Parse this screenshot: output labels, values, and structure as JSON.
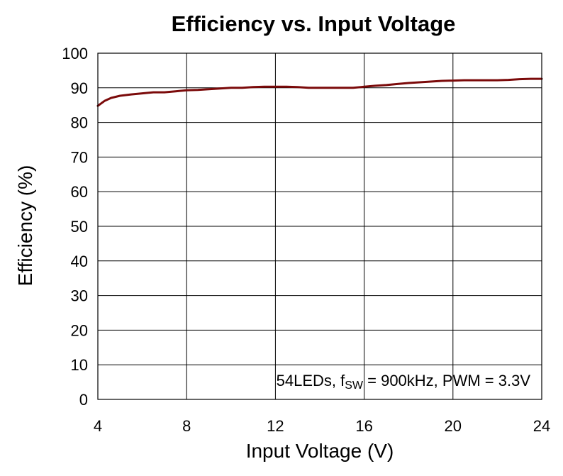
{
  "chart_data": {
    "type": "line",
    "title": "Efficiency vs. Input Voltage",
    "xlabel": "Input Voltage (V)",
    "ylabel": "Efficiency (%)",
    "xlim": [
      4,
      24
    ],
    "ylim": [
      0,
      100
    ],
    "xticks": [
      4,
      8,
      12,
      16,
      20,
      24
    ],
    "yticks": [
      0,
      10,
      20,
      30,
      40,
      50,
      60,
      70,
      80,
      90,
      100
    ],
    "grid": true,
    "annotation": {
      "prefix": "54LEDs, f",
      "subscript": "SW",
      "suffix": " = 900kHz, PWM = 3.3V"
    },
    "series": [
      {
        "color": "#7b0a0a",
        "x": [
          4.0,
          4.3,
          4.6,
          5.0,
          5.5,
          6.0,
          6.5,
          7.0,
          7.5,
          8.0,
          8.5,
          9.0,
          9.5,
          10.0,
          10.5,
          11.0,
          11.5,
          12.0,
          12.5,
          13.0,
          13.5,
          14.0,
          14.5,
          15.0,
          15.5,
          16.0,
          16.5,
          17.0,
          17.5,
          18.0,
          18.5,
          19.0,
          19.5,
          20.0,
          20.5,
          21.0,
          21.5,
          22.0,
          22.5,
          23.0,
          23.5,
          24.0
        ],
        "y": [
          84.8,
          86.2,
          87.1,
          87.7,
          88.1,
          88.4,
          88.7,
          88.7,
          89.0,
          89.3,
          89.4,
          89.6,
          89.8,
          90.0,
          90.0,
          90.2,
          90.3,
          90.3,
          90.3,
          90.2,
          90.0,
          90.0,
          90.0,
          90.0,
          90.0,
          90.3,
          90.6,
          90.8,
          91.1,
          91.4,
          91.6,
          91.8,
          92.0,
          92.1,
          92.2,
          92.2,
          92.2,
          92.2,
          92.3,
          92.5,
          92.6,
          92.6
        ]
      }
    ]
  }
}
